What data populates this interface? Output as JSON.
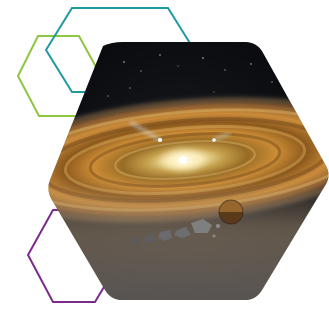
{
  "image": {
    "subject": "protoplanetary-disk",
    "colors": {
      "green_outline": "#8dc63f",
      "teal_outline": "#1e9aa3",
      "purple_outline": "#7b2a8a",
      "space": "#06080c",
      "disk_gold": "#d39a3a",
      "disk_core": "#fff3c6"
    }
  }
}
